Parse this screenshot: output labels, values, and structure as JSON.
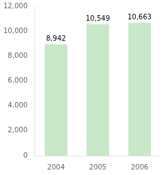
{
  "chart_data": {
    "type": "bar",
    "categories": [
      "2004",
      "2005",
      "2006"
    ],
    "values": [
      8942,
      10549,
      10663
    ],
    "value_labels": [
      "8,942",
      "10,549",
      "10,663"
    ],
    "data_labels": true,
    "color": "#c6e8c6",
    "ylim": [
      0,
      12000
    ],
    "yticks": [
      0,
      {
        "value": 2000,
        "label": "2,000"
      },
      {
        "value": 4000,
        "label": "4,000"
      },
      {
        "value": 6000,
        "label": "6,000"
      },
      {
        "value": 8000,
        "label": "8,000"
      },
      {
        "value": 10000,
        "label": "10,000"
      },
      {
        "value": 12000,
        "label": "12,000"
      }
    ],
    "grid": false
  }
}
